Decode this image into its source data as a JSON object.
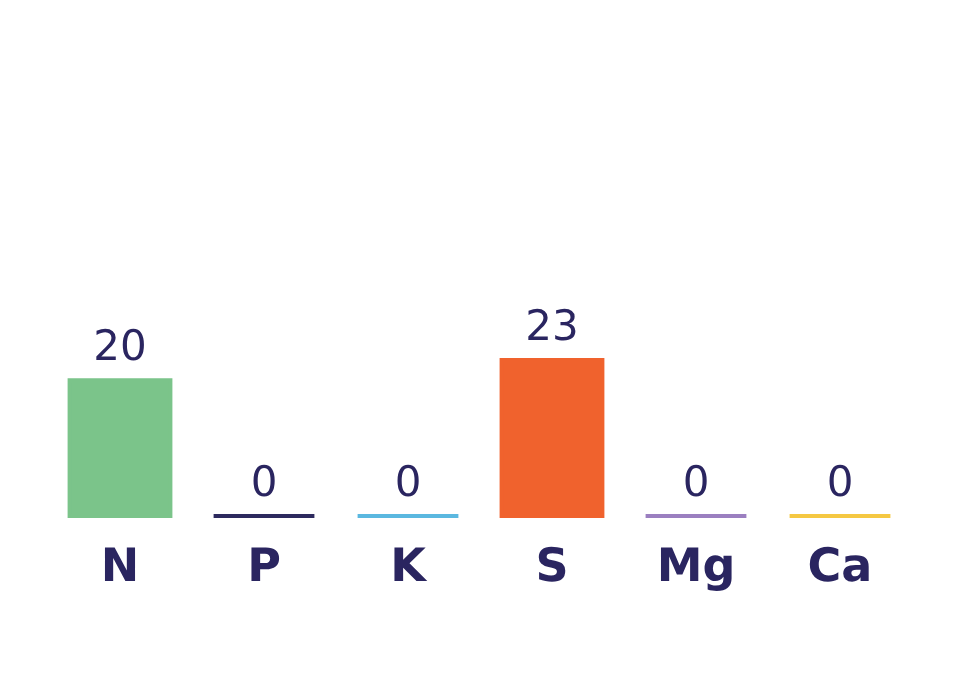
{
  "chart_data": {
    "type": "bar",
    "categories": [
      "N",
      "P",
      "K",
      "S",
      "Mg",
      "Ca"
    ],
    "values": [
      20,
      0,
      0,
      23,
      0,
      0
    ],
    "colors": [
      "#7bc48a",
      "#2d2a5e",
      "#5bb8e0",
      "#f0622d",
      "#9b7fc0",
      "#f5c842"
    ],
    "data_labels": true
  }
}
